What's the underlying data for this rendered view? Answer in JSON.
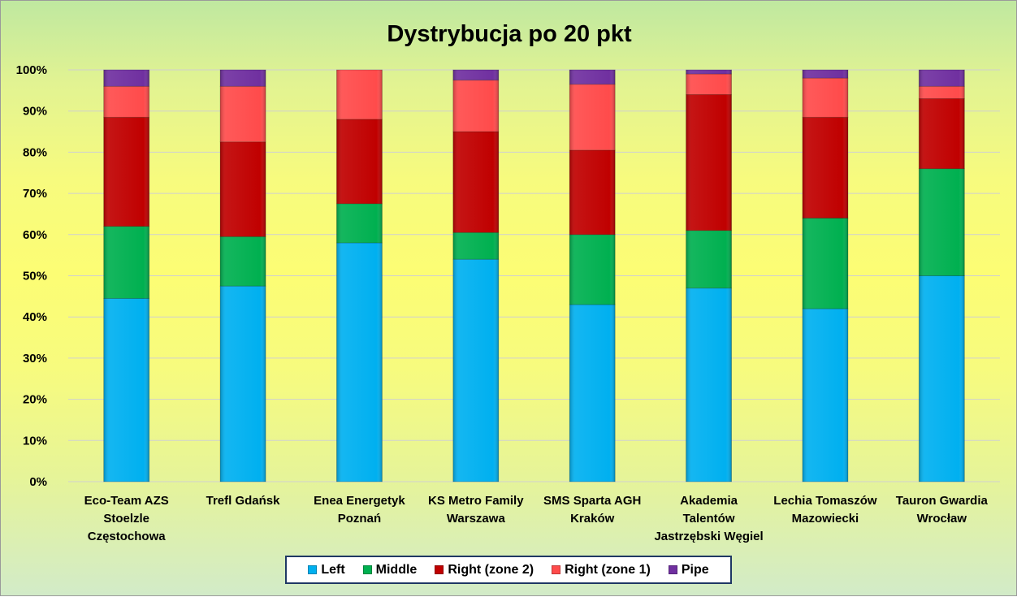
{
  "chart_data": {
    "type": "bar",
    "stacked": true,
    "percent_stacked": true,
    "title": "Dystrybucja po 20 pkt",
    "xlabel": "",
    "ylabel": "",
    "ylim": [
      0,
      100
    ],
    "yticks": [
      "0%",
      "10%",
      "20%",
      "30%",
      "40%",
      "50%",
      "60%",
      "70%",
      "80%",
      "90%",
      "100%"
    ],
    "grid": true,
    "legend_position": "bottom",
    "categories": [
      [
        "Eco-Team AZS",
        "Stoelzle",
        "Częstochowa"
      ],
      [
        "Trefl Gdańsk"
      ],
      [
        "Enea Energetyk",
        "Poznań"
      ],
      [
        "KS Metro Family",
        "Warszawa"
      ],
      [
        "SMS Sparta AGH",
        "Kraków"
      ],
      [
        "Akademia",
        "Talentów",
        "Jastrzębski Węgiel"
      ],
      [
        "Lechia Tomaszów",
        "Mazowiecki"
      ],
      [
        "Tauron Gwardia",
        "Wrocław"
      ]
    ],
    "series": [
      {
        "name": "Left",
        "color": "#00b0f0",
        "values": [
          44.5,
          47.5,
          58,
          54,
          43,
          47,
          42,
          50
        ]
      },
      {
        "name": "Middle",
        "color": "#00b050",
        "values": [
          17.5,
          12,
          9.5,
          6.5,
          17,
          14,
          22,
          26
        ]
      },
      {
        "name": "Right (zone 2)",
        "color": "#c00000",
        "values": [
          26.5,
          23,
          20.5,
          24.5,
          20.5,
          33,
          24.5,
          17
        ]
      },
      {
        "name": "Right (zone 1)",
        "color": "#ff4b4b",
        "values": [
          7.5,
          13.5,
          12,
          12.5,
          16,
          5,
          9.5,
          3
        ]
      },
      {
        "name": "Pipe",
        "color": "#7030a0",
        "values": [
          4,
          4,
          0,
          2.5,
          3.5,
          1,
          2,
          4
        ]
      }
    ]
  }
}
